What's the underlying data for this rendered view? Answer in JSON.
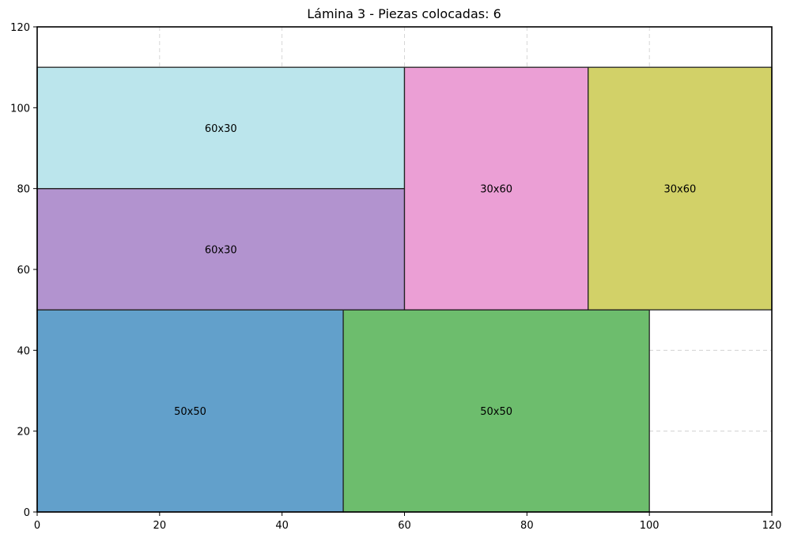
{
  "chart_data": {
    "type": "rectangle-packing",
    "title": "Lámina 3 - Piezas colocadas: 6",
    "xlabel": "",
    "ylabel": "",
    "xlim": [
      0,
      120
    ],
    "ylim": [
      0,
      120
    ],
    "x_ticks": [
      0,
      20,
      40,
      60,
      80,
      100,
      120
    ],
    "y_ticks": [
      0,
      20,
      40,
      60,
      80,
      100,
      120
    ],
    "grid": true,
    "pieces": [
      {
        "label": "50x50",
        "x": 0,
        "y": 0,
        "width": 50,
        "height": 50,
        "color": "#62a0cb"
      },
      {
        "label": "50x50",
        "x": 50,
        "y": 0,
        "width": 50,
        "height": 50,
        "color": "#6dbd6d"
      },
      {
        "label": "60x30",
        "x": 0,
        "y": 50,
        "width": 60,
        "height": 30,
        "color": "#b293cf"
      },
      {
        "label": "60x30",
        "x": 0,
        "y": 80,
        "width": 60,
        "height": 30,
        "color": "#bbe5ec"
      },
      {
        "label": "30x60",
        "x": 60,
        "y": 50,
        "width": 30,
        "height": 60,
        "color": "#eb9fd5"
      },
      {
        "label": "30x60",
        "x": 90,
        "y": 50,
        "width": 30,
        "height": 60,
        "color": "#d2d168"
      }
    ]
  }
}
